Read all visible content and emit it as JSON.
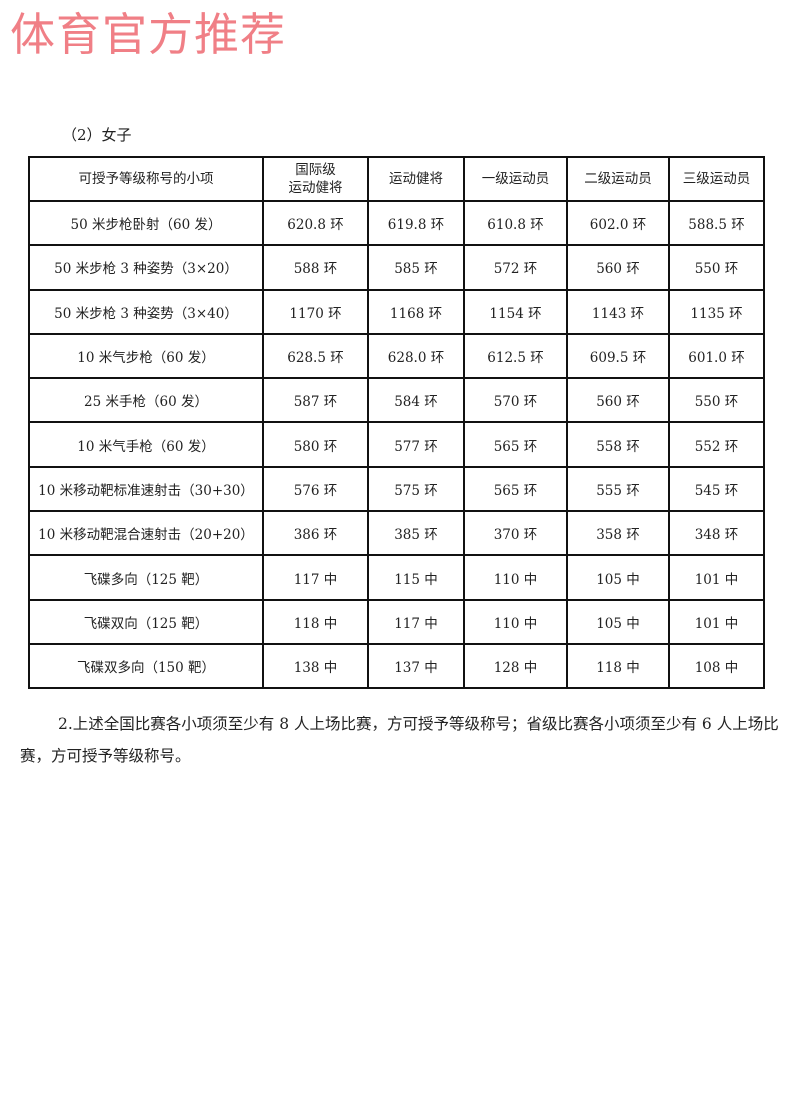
{
  "watermark": "体育官方推荐",
  "subtitle": "（2）女子",
  "table": {
    "headers": [
      "可授予等级称号的小项",
      "国际级\n运动健将",
      "运动健将",
      "一级运动员",
      "二级运动员",
      "三级运动员"
    ],
    "rows": [
      [
        "50 米步枪卧射（60 发）",
        "620.8 环",
        "619.8 环",
        "610.8 环",
        "602.0 环",
        "588.5 环"
      ],
      [
        "50 米步枪 3 种姿势（3×20）",
        "588 环",
        "585 环",
        "572 环",
        "560 环",
        "550 环"
      ],
      [
        "50 米步枪 3 种姿势（3×40）",
        "1170 环",
        "1168 环",
        "1154 环",
        "1143 环",
        "1135 环"
      ],
      [
        "10 米气步枪（60 发）",
        "628.5 环",
        "628.0 环",
        "612.5 环",
        "609.5 环",
        "601.0 环"
      ],
      [
        "25 米手枪（60 发）",
        "587 环",
        "584 环",
        "570 环",
        "560 环",
        "550 环"
      ],
      [
        "10 米气手枪（60 发）",
        "580 环",
        "577 环",
        "565 环",
        "558 环",
        "552 环"
      ],
      [
        "10 米移动靶标准速射击（30+30）",
        "576 环",
        "575 环",
        "565 环",
        "555 环",
        "545 环"
      ],
      [
        "10 米移动靶混合速射击（20+20）",
        "386 环",
        "385 环",
        "370 环",
        "358 环",
        "348 环"
      ],
      [
        "飞碟多向（125 靶）",
        "117 中",
        "115 中",
        "110 中",
        "105 中",
        "101 中"
      ],
      [
        "飞碟双向（125 靶）",
        "118 中",
        "117 中",
        "110 中",
        "105 中",
        "101 中"
      ],
      [
        "飞碟双多向（150 靶）",
        "138 中",
        "137 中",
        "128 中",
        "118 中",
        "108 中"
      ]
    ]
  },
  "note": "2.上述全国比赛各小项须至少有 8 人上场比赛，方可授予等级称号；省级比赛各小项须至少有 6 人上场比赛，方可授予等级称号。"
}
